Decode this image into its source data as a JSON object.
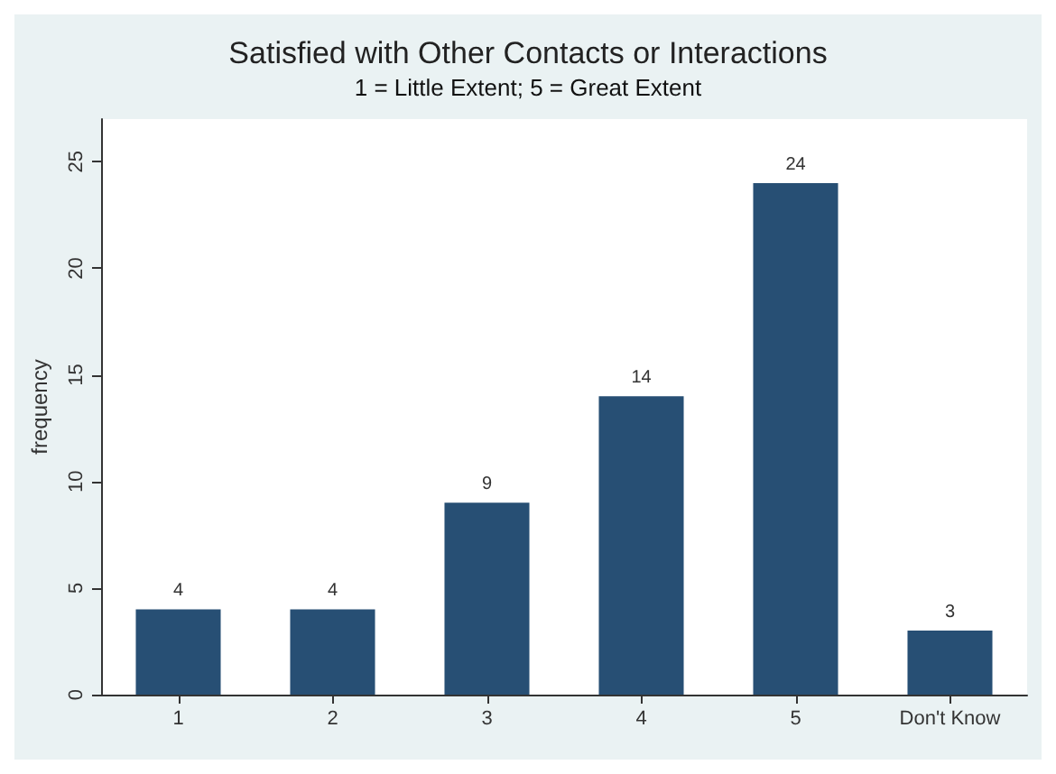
{
  "chart_data": {
    "type": "bar",
    "title": "Satisfied with Other Contacts or Interactions",
    "subtitle": "1 = Little Extent; 5 = Great Extent",
    "ylabel": "frequency",
    "categories": [
      "1",
      "2",
      "3",
      "4",
      "5",
      "Don't Know"
    ],
    "values": [
      4,
      4,
      9,
      14,
      24,
      3
    ],
    "color": "#274f74",
    "ylim": [
      0,
      27
    ],
    "yticks": [
      0,
      5,
      10,
      15,
      20,
      25
    ],
    "grid": false,
    "data_labels": true
  }
}
